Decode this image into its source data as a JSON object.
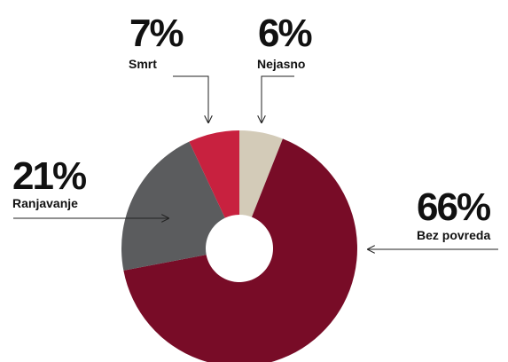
{
  "chart_data": {
    "type": "donut",
    "categories": [
      "Nejasno",
      "Bez povreda",
      "Ranjavanje",
      "Smrt"
    ],
    "values": [
      6,
      66,
      21,
      7
    ],
    "value_labels": [
      "6%",
      "66%",
      "21%",
      "7%"
    ],
    "colors": [
      "#d3cbb8",
      "#780c27",
      "#5b5c5e",
      "#c8213f"
    ]
  }
}
